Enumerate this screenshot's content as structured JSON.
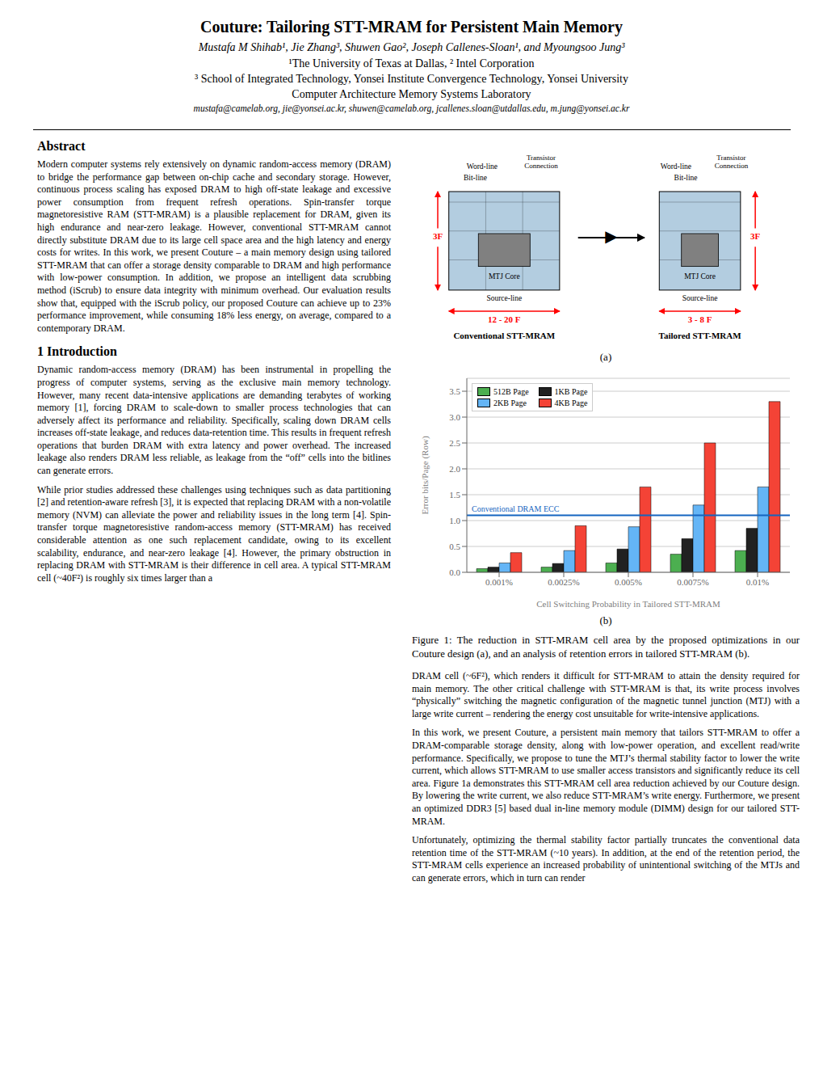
{
  "chart_data": {
    "type": "bar",
    "panel_label": "(b)",
    "xlabel": "Cell Switching Probability in Tailored STT-MRAM",
    "ylabel": "Error bits/Page (Row)",
    "categories": [
      "0.001%",
      "0.0025%",
      "0.005%",
      "0.0075%",
      "0.01%"
    ],
    "series": [
      {
        "name": "512B Page",
        "color": "#4caf50",
        "values": [
          0.07,
          0.1,
          0.18,
          0.35,
          0.42
        ]
      },
      {
        "name": "1KB Page",
        "color": "#212121",
        "values": [
          0.1,
          0.17,
          0.45,
          0.65,
          0.85
        ]
      },
      {
        "name": "2KB Page",
        "color": "#64b5f6",
        "values": [
          0.18,
          0.42,
          0.88,
          1.3,
          1.65
        ]
      },
      {
        "name": "4KB Page",
        "color": "#f44336",
        "values": [
          0.38,
          0.9,
          1.65,
          2.5,
          3.3
        ]
      }
    ],
    "annotations": [
      {
        "text": "Conventional DRAM ECC",
        "y": 1.1,
        "color": "#1565c0"
      }
    ],
    "ylim": [
      0,
      3.75
    ],
    "yticks": [
      {
        "value": 0.0,
        "label": "0.0"
      },
      0.5,
      {
        "value": 1.0,
        "label": "1.0"
      },
      1.5,
      {
        "value": 2.0,
        "label": "2.0"
      },
      2.5,
      {
        "value": 3.0,
        "label": "3.0"
      },
      3.5
    ],
    "grid": true,
    "legend": "upper left"
  },
  "page": {
    "background": "#ffffff",
    "title": "Couture: Tailoring STT-MRAM for Persistent Main Memory",
    "authors": "Mustafa M Shihab¹, Jie Zhang³, Shuwen Gao², Joseph Callenes-Sloan¹, and Myoungsoo Jung³",
    "affiliations": [
      "¹The University of Texas at Dallas, ² Intel Corporation",
      "³ School of Integrated Technology, Yonsei Institute Convergence Technology, Yonsei University",
      "Computer Architecture Memory Systems Laboratory"
    ],
    "email": "mustafa@camelab.org, jie@yonsei.ac.kr, shuwen@camelab.org, jcallenes.sloan@utdallas.edu, m.jung@yonsei.ac.kr",
    "abstract_title": "Abstract",
    "abstract_text": "Modern computer systems rely extensively on dynamic random-access memory (DRAM) to bridge the performance gap between on-chip cache and secondary storage. However, continuous process scaling has exposed DRAM to high off-state leakage and excessive power consumption from frequent refresh operations. Spin-transfer torque magnetoresistive RAM (STT-MRAM) is a plausible replacement for DRAM, given its high endurance and near-zero leakage. However, conventional STT-MRAM cannot directly substitute DRAM due to its large cell space area and the high latency and energy costs for writes. In this work, we present Couture – a main memory design using tailored STT-MRAM that can offer a storage density comparable to DRAM and high performance with low-power consumption. In addition, we propose an intelligent data scrubbing method (iScrub) to ensure data integrity with minimum overhead. Our evaluation results show that, equipped with the iScrub policy, our proposed Couture can achieve up to 23% performance improvement, while consuming 18% less energy, on average, compared to a contemporary DRAM.",
    "intro_title": "1 Introduction",
    "intro_text1": "Dynamic random-access memory (DRAM) has been instrumental in propelling the progress of computer systems, serving as the exclusive main memory technology. However, many recent data-intensive applications are demanding terabytes of working memory [1], forcing DRAM to scale-down to smaller process technologies that can adversely affect its performance and reliability. Specifically, scaling down DRAM cells increases off-state leakage, and reduces data-retention time. This results in frequent refresh operations that burden DRAM with extra latency and power overhead. The increased leakage also renders DRAM less reliable, as leakage from the “off” cells into the bitlines can generate errors.",
    "intro_text2": "While prior studies addressed these challenges using techniques such as data partitioning [2] and retention-aware refresh [3], it is expected that replacing DRAM with a non-volatile memory (NVM) can alleviate the power and reliability issues in the long term [4]. Spin-transfer torque magnetoresistive random-access memory (STT-MRAM) has received considerable attention as one such replacement candidate, owing to its excellent scalability, endurance, and near-zero leakage [4]. However, the primary obstruction in replacing DRAM with STT-MRAM is their difference in cell area. A typical STT-MRAM cell (~40F²) is roughly six times larger than a",
    "right_col_text1": "DRAM cell (~6F²), which renders it difficult for STT-MRAM to attain the density required for main memory. The other critical challenge with STT-MRAM is that, its write process involves “physically” switching the magnetic configuration of the magnetic tunnel junction (MTJ) with a large write current – rendering the energy cost unsuitable for write-intensive applications.",
    "right_col_text2": "In this work, we present Couture, a persistent main memory that tailors STT-MRAM to offer a DRAM-comparable storage density, along with low-power operation, and excellent read/write performance. Specifically, we propose to tune the MTJ’s thermal stability factor to lower the write current, which allows STT-MRAM to use smaller access transistors and significantly reduce its cell area. Figure 1a demonstrates this STT-MRAM cell area reduction achieved by our Couture design. By lowering the write current, we also reduce STT-MRAM’s write energy. Furthermore, we present an optimized DDR3 [5] based dual in-line memory module (DIMM) design for our tailored STT-MRAM.",
    "right_col_text3": "Unfortunately, optimizing the thermal stability factor partially truncates the conventional data retention time of the STT-MRAM (~10 years). In addition, at the end of the retention period, the STT-MRAM cells experience an increased probability of unintentional switching of the MTJs and can generate errors, which in turn can render",
    "fig_caption": "Figure 1: The reduction in STT-MRAM cell area by the proposed optimizations in our Couture design (a), and an analysis of retention errors in tailored STT-MRAM (b).",
    "figure_a": {
      "panel_label": "(a)",
      "left_name": "Conventional STT-MRAM",
      "left_width_label": "12 - 20 F",
      "right_name": "Tailored STT-MRAM",
      "right_width_label": "3 - 8 F",
      "height_label": "3F",
      "word_line": "Word-line",
      "transistor": "Transistor\nConnection",
      "bit_line": "Bit-line",
      "source_line": "Source-line",
      "mtj_core": "MTJ Core",
      "arrow_symbol": "▶",
      "cell_color": "#b3cde0",
      "mtj_color": "#808080",
      "annotation_color": "red"
    }
  }
}
